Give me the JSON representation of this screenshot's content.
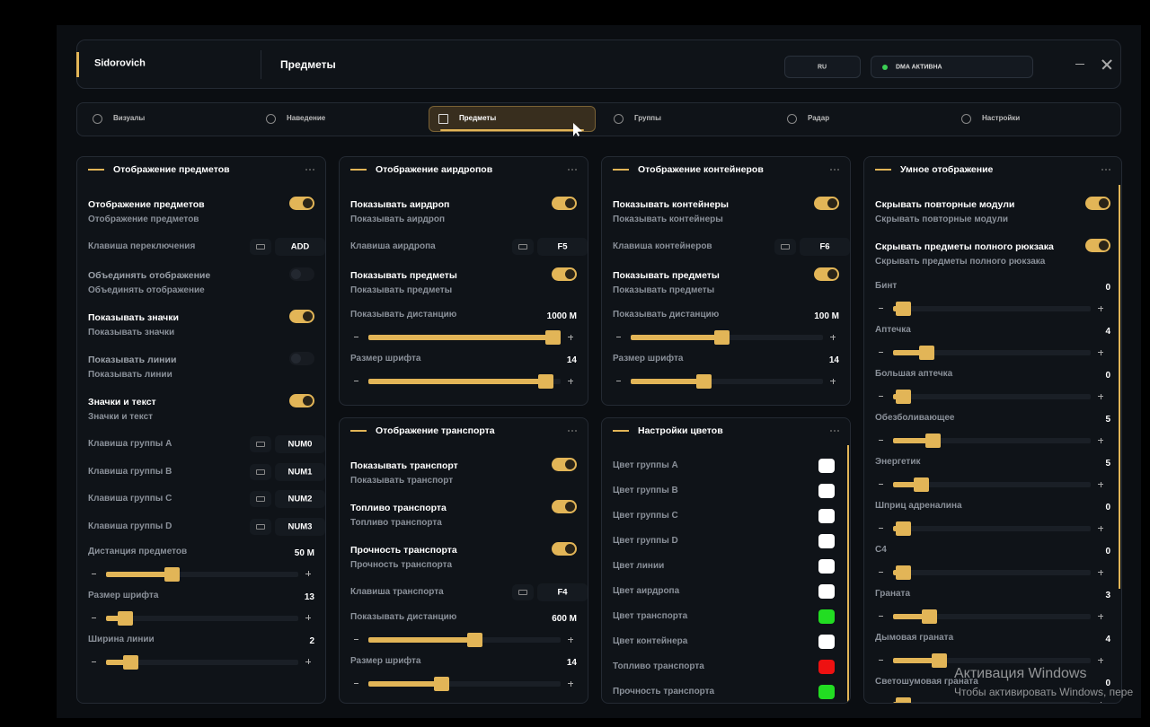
{
  "header": {
    "brand": "Sidorovich",
    "page_title": "Предметы",
    "language": "RU",
    "status": "DMA АКТИВНА"
  },
  "tabs": [
    {
      "label": "Визуалы"
    },
    {
      "label": "Наведение"
    },
    {
      "label": "Предметы"
    },
    {
      "label": "Группы"
    },
    {
      "label": "Радар"
    },
    {
      "label": "Настройки"
    }
  ],
  "active_tab": 2,
  "panels": [
    {
      "title": "Отображение предметов",
      "items": [
        {
          "kind": "toggle",
          "label": "Отображение предметов",
          "sublabel": "Отображение предметов",
          "on": true
        },
        {
          "kind": "key",
          "label": "Клавиша переключения",
          "key": "ADD"
        },
        {
          "kind": "toggle",
          "label": "Объединять отображение",
          "sublabel": "Объединять отображение",
          "on": false
        },
        {
          "kind": "toggle",
          "label": "Показывать значки",
          "sublabel": "Показывать значки",
          "on": true
        },
        {
          "kind": "toggle",
          "label": "Показывать линии",
          "sublabel": "Показывать линии",
          "on": false
        },
        {
          "kind": "toggle",
          "label": "Значки и текст",
          "sublabel": "Значки и текст",
          "on": true
        },
        {
          "kind": "key",
          "label": "Клавиша группы A",
          "key": "NUM0"
        },
        {
          "kind": "key",
          "label": "Клавиша группы B",
          "key": "NUM1"
        },
        {
          "kind": "key",
          "label": "Клавиша группы C",
          "key": "NUM2"
        },
        {
          "kind": "key",
          "label": "Клавиша группы D",
          "key": "NUM3"
        },
        {
          "kind": "slider",
          "label": "Дистанция предметов",
          "value": "50 M"
        },
        {
          "kind": "slider",
          "label": "Размер шрифта",
          "value": "13"
        },
        {
          "kind": "slider",
          "label": "Ширина линии",
          "value": "2"
        }
      ]
    },
    {
      "title": "Отображение аирдропов",
      "items": [
        {
          "kind": "toggle",
          "label": "Показывать аирдроп",
          "sublabel": "Показывать аирдроп",
          "on": true
        },
        {
          "kind": "key",
          "label": "Клавиша аирдропа",
          "key": "F5"
        },
        {
          "kind": "toggle",
          "label": "Показывать предметы",
          "sublabel": "Показывать предметы",
          "on": true
        },
        {
          "kind": "slider",
          "label": "Показывать дистанцию",
          "value": "1000 M"
        },
        {
          "kind": "slider",
          "label": "Размер шрифта",
          "value": "14"
        }
      ]
    },
    {
      "title": "Отображение транспорта",
      "items": [
        {
          "kind": "toggle",
          "label": "Показывать транспорт",
          "sublabel": "Показывать транспорт",
          "on": true
        },
        {
          "kind": "toggle",
          "label": "Топливо транспорта",
          "sublabel": "Топливо транспорта",
          "on": true
        },
        {
          "kind": "toggle",
          "label": "Прочность транспорта",
          "sublabel": "Прочность транспорта",
          "on": true
        },
        {
          "kind": "key",
          "label": "Клавиша транспорта",
          "key": "F4"
        },
        {
          "kind": "slider",
          "label": "Показывать дистанцию",
          "value": "600 M"
        },
        {
          "kind": "slider",
          "label": "Размер шрифта",
          "value": "14"
        }
      ]
    },
    {
      "title": "Отображение контейнеров",
      "items": [
        {
          "kind": "toggle",
          "label": "Показывать контейнеры",
          "sublabel": "Показывать контейнеры",
          "on": true
        },
        {
          "kind": "key",
          "label": "Клавиша контейнеров",
          "key": "F6"
        },
        {
          "kind": "toggle",
          "label": "Показывать предметы",
          "sublabel": "Показывать предметы",
          "on": true
        },
        {
          "kind": "slider",
          "label": "Показывать дистанцию",
          "value": "100 M"
        },
        {
          "kind": "slider",
          "label": "Размер шрифта",
          "value": "14"
        }
      ]
    },
    {
      "title": "Настройки цветов",
      "items": [
        {
          "kind": "color",
          "label": "Цвет группы A",
          "color": "#ffffff"
        },
        {
          "kind": "color",
          "label": "Цвет группы B",
          "color": "#ffffff"
        },
        {
          "kind": "color",
          "label": "Цвет группы C",
          "color": "#ffffff"
        },
        {
          "kind": "color",
          "label": "Цвет группы D",
          "color": "#ffffff"
        },
        {
          "kind": "color",
          "label": "Цвет линии",
          "color": "#ffffff"
        },
        {
          "kind": "color",
          "label": "Цвет аирдропа",
          "color": "#ffffff"
        },
        {
          "kind": "color",
          "label": "Цвет транспорта",
          "color": "#22dd22"
        },
        {
          "kind": "color",
          "label": "Цвет контейнера",
          "color": "#ffffff"
        },
        {
          "kind": "color",
          "label": "Топливо транспорта",
          "color": "#ee1111"
        },
        {
          "kind": "color",
          "label": "Прочность транспорта",
          "color": "#22dd22"
        }
      ]
    },
    {
      "title": "Умное отображение",
      "items": [
        {
          "kind": "toggle",
          "label": "Скрывать повторные модули",
          "sublabel": "Скрывать повторные модули",
          "on": true
        },
        {
          "kind": "toggle",
          "label": "Скрывать предметы полного рюкзака",
          "sublabel": "Скрывать предметы полного рюкзака",
          "on": true
        },
        {
          "kind": "slider",
          "label": "Бинт",
          "value": "0"
        },
        {
          "kind": "slider",
          "label": "Аптечка",
          "value": "4"
        },
        {
          "kind": "slider",
          "label": "Большая аптечка",
          "value": "0"
        },
        {
          "kind": "slider",
          "label": "Обезболивающее",
          "value": "5"
        },
        {
          "kind": "slider",
          "label": "Энергетик",
          "value": "5"
        },
        {
          "kind": "slider",
          "label": "Шприц адреналина",
          "value": "0"
        },
        {
          "kind": "slider",
          "label": "C4",
          "value": "0"
        },
        {
          "kind": "slider",
          "label": "Граната",
          "value": "3"
        },
        {
          "kind": "slider",
          "label": "Дымовая граната",
          "value": "4"
        },
        {
          "kind": "slider",
          "label": "Светошумовая граната",
          "value": "0"
        }
      ]
    }
  ],
  "watermark": {
    "title": "Активация Windows",
    "text": "Чтобы активировать Windows, пере"
  }
}
